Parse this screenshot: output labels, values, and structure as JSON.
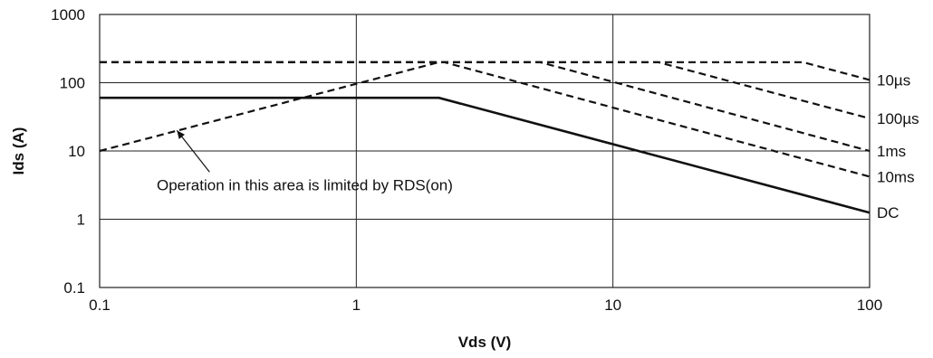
{
  "chart_data": {
    "type": "line",
    "title": "",
    "xlabel": "Vds (V)",
    "ylabel": "Ids (A)",
    "xscale": "log",
    "yscale": "log",
    "xlim": [
      0.1,
      100
    ],
    "ylim": [
      0.1,
      1000
    ],
    "grid": true,
    "xticks": [
      "0.1",
      "1",
      "10",
      "100"
    ],
    "yticks": [
      "0.1",
      "1",
      "10",
      "100",
      "1000"
    ],
    "series": [
      {
        "name": "10µs",
        "style": "dashed",
        "points": [
          [
            0.1,
            200
          ],
          [
            55,
            200
          ],
          [
            100,
            110
          ]
        ]
      },
      {
        "name": "100µs",
        "style": "dashed",
        "points": [
          [
            0.1,
            200
          ],
          [
            15,
            200
          ],
          [
            100,
            30
          ]
        ]
      },
      {
        "name": "1ms",
        "style": "dashed",
        "points": [
          [
            0.1,
            200
          ],
          [
            5.2,
            200
          ],
          [
            100,
            10
          ]
        ]
      },
      {
        "name": "10ms",
        "style": "dashed",
        "points": [
          [
            0.1,
            200
          ],
          [
            2.2,
            200
          ],
          [
            100,
            4.2
          ]
        ]
      },
      {
        "name": "DC",
        "style": "solid",
        "points": [
          [
            0.1,
            60
          ],
          [
            2.1,
            60
          ],
          [
            100,
            1.25
          ]
        ]
      },
      {
        "name": "",
        "style": "dashed",
        "points": [
          [
            0.1,
            10
          ],
          [
            2.1,
            200
          ]
        ]
      }
    ],
    "annotation": {
      "text": "Operation in this area is limited by RDS(on)",
      "arrow_to": [
        0.2,
        20
      ]
    }
  }
}
